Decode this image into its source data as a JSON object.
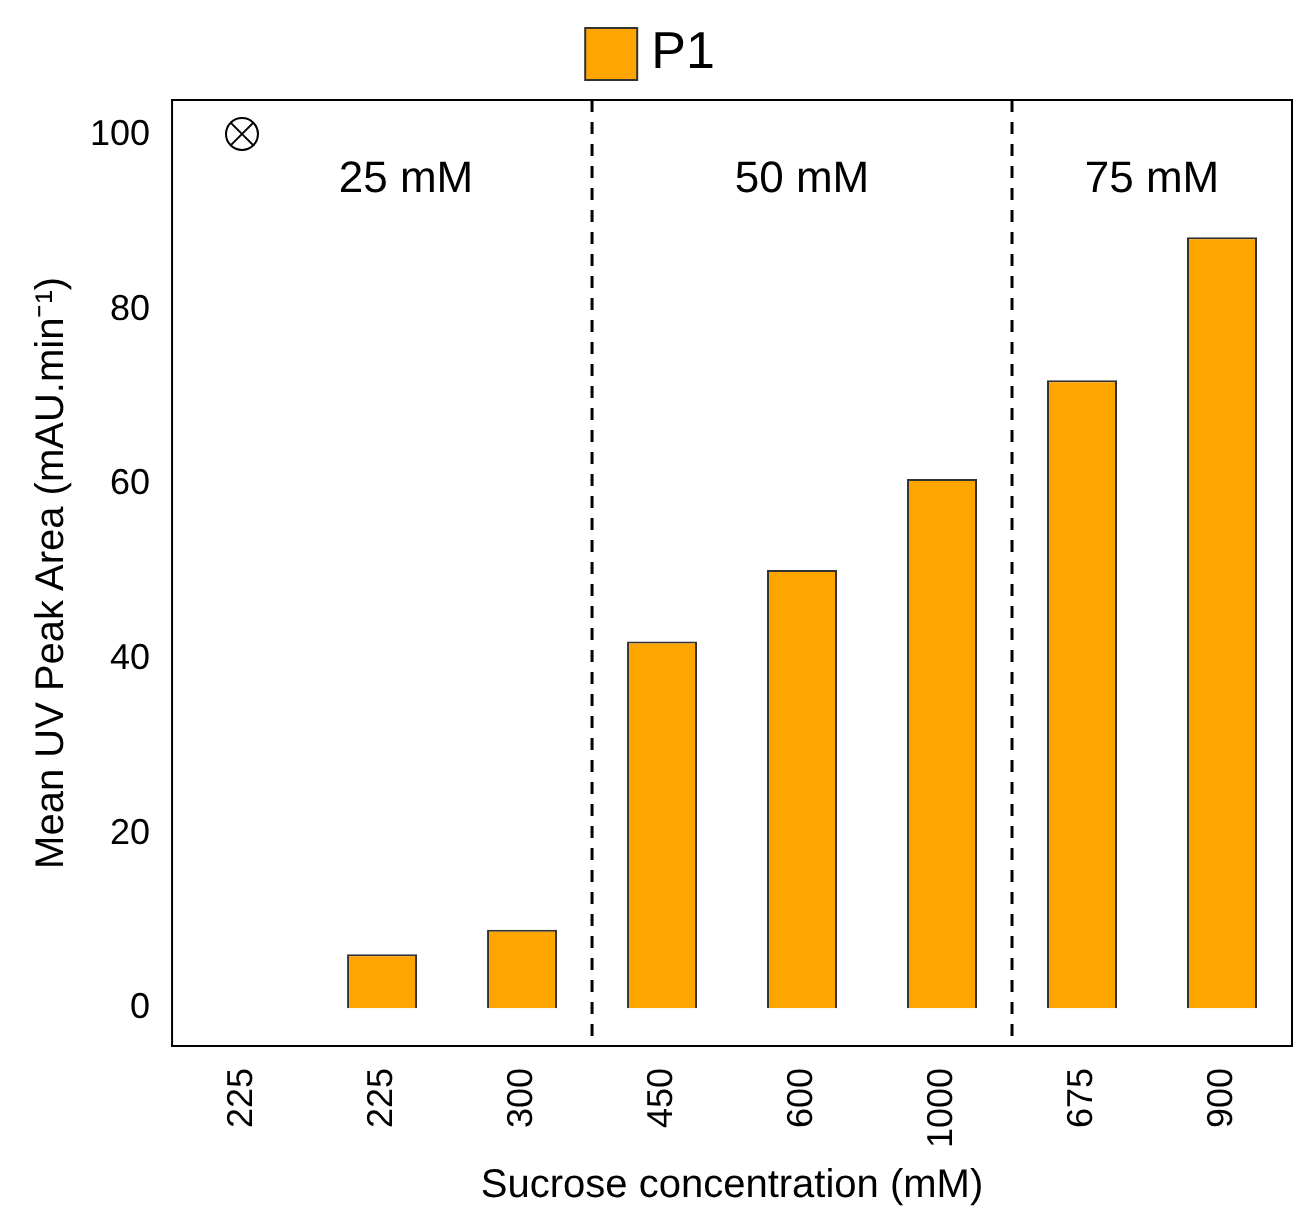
{
  "chart_data": {
    "type": "bar",
    "xlabel": "Sucrose concentration (mM)",
    "ylabel": "Mean UV Peak Area (mAU.min⁻¹)",
    "categories": [
      "225",
      "225",
      "300",
      "450",
      "600",
      "1000",
      "675",
      "900"
    ],
    "series": [
      {
        "name": "P1",
        "color": "#ffa500",
        "values": [
          0,
          6.2,
          9,
          42,
          50.2,
          60.6,
          71.9,
          88.3
        ]
      }
    ],
    "ylim": [
      -4.3,
      104
    ],
    "yticks": [
      0,
      20,
      40,
      60,
      80,
      100
    ],
    "grid": false,
    "legend": "top",
    "annotations": [
      "25 mM",
      "50 mM",
      "75 mM"
    ]
  }
}
